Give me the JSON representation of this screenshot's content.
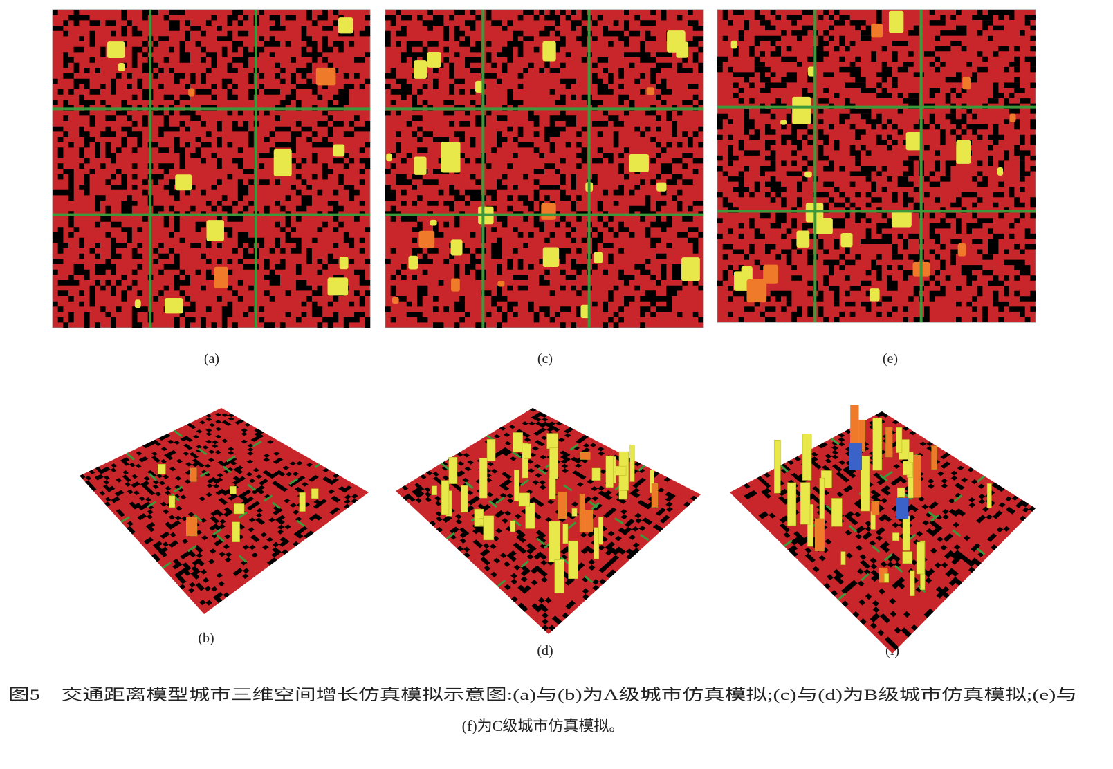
{
  "panels": {
    "labels": [
      "(a)",
      "(c)",
      "(e)",
      "(b)",
      "(d)",
      "(f)"
    ]
  },
  "caption": {
    "lines": [
      "图5　交通距离模型城市三维空间增长仿真模拟示意图:(a)与(b)为A级城市仿真模拟;(c)与(d)为B级城市仿真模拟;(e)与",
      "(f)为C级城市仿真模拟。"
    ]
  }
}
